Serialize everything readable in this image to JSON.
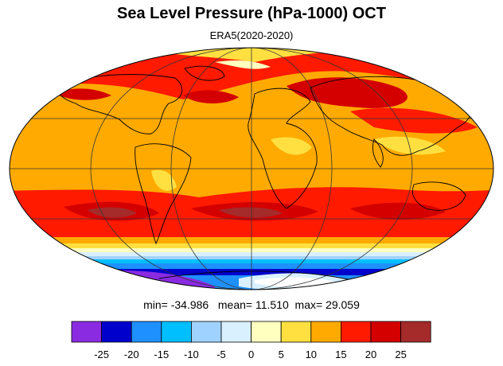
{
  "title": "Sea Level Pressure (hPa-1000) OCT",
  "subtitle": "ERA5(2020-2020)",
  "stats": {
    "min_label": "min=",
    "min_value": "-34.986",
    "mean_label": "mean=",
    "mean_value": "11.510",
    "max_label": "max=",
    "max_value": "29.059"
  },
  "colorbar": {
    "colors": [
      "#8a2be2",
      "#0000cd",
      "#1e90ff",
      "#00bfff",
      "#a0d2ff",
      "#d8f0ff",
      "#ffffc0",
      "#ffe040",
      "#ffaa00",
      "#ff1a00",
      "#d40000",
      "#a52a2a"
    ],
    "ticks": [
      "-25",
      "-20",
      "-15",
      "-10",
      "-5",
      "0",
      "5",
      "10",
      "15",
      "20",
      "25"
    ]
  },
  "map": {
    "projection": "mollweide",
    "land_outline_color": "#000000",
    "grid_color": "#333333"
  }
}
